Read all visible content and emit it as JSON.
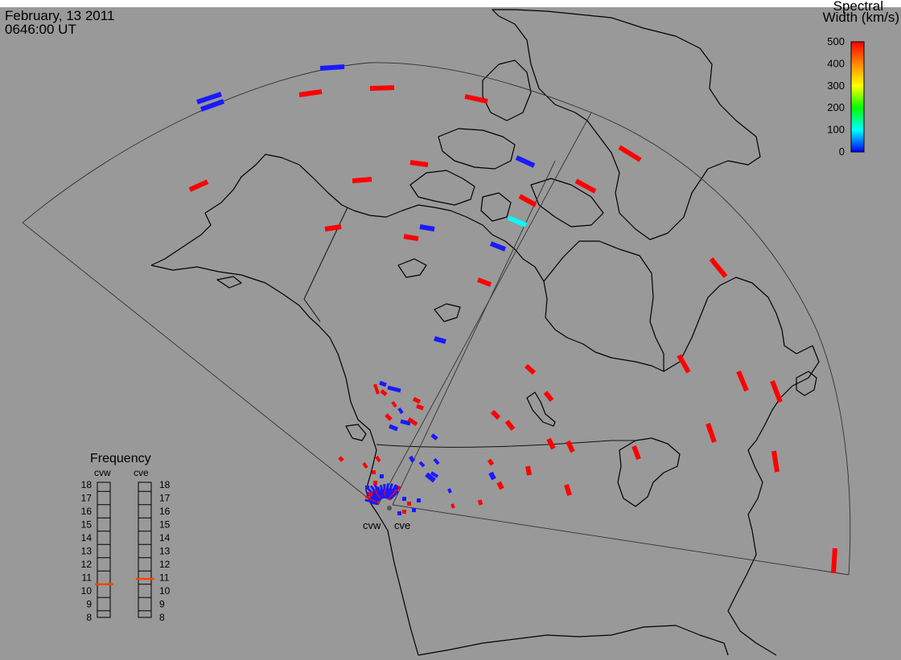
{
  "header": {
    "date": "February, 13 2011",
    "time": "0646:00 UT"
  },
  "colorbar": {
    "title_line1": "Spectral",
    "title_line2": "Width (km/s)",
    "ticks": [
      "500",
      "400",
      "300",
      "200",
      "100",
      "0"
    ],
    "range": [
      0,
      500
    ],
    "colors": [
      "#ff0000",
      "#ff8800",
      "#ffff00",
      "#00ff00",
      "#00ffff",
      "#0000ff"
    ]
  },
  "radars": {
    "west_label": "cvw",
    "east_label": "cve"
  },
  "frequency_panel": {
    "title": "Frequency",
    "west_label": "cvw",
    "east_label": "cve",
    "scale": [
      "18",
      "17",
      "16",
      "15",
      "14",
      "13",
      "12",
      "11",
      "10",
      "9",
      "8"
    ],
    "unit_note": "",
    "cvw_frequency": 10.5,
    "cve_frequency": 10.9,
    "indicator_color": "#ff4400"
  },
  "colors": {
    "background": "#999999",
    "red_echo": "#ff0000",
    "blue_echo": "#1a1aff",
    "cyan_echo": "#00ffff"
  }
}
